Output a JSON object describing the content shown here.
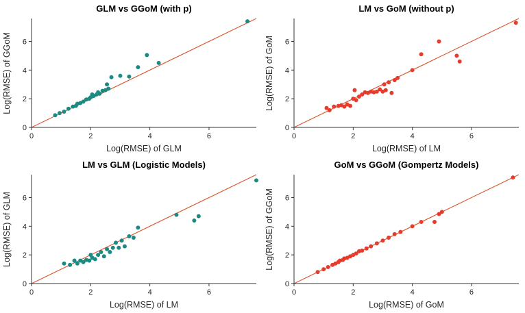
{
  "colors": {
    "teal_marker": "#1c8a82",
    "red_marker": "#e63c2d",
    "identity_line": "#d95a35",
    "axis": "#333333",
    "background": "#ffffff"
  },
  "chart_data": [
    {
      "type": "scatter",
      "title": "GLM vs GGoM (with p)",
      "xlabel": "Log(RMSE) of GLM",
      "ylabel": "Log(RMSE) of GGoM",
      "xlim": [
        0,
        7.6
      ],
      "ylim": [
        0,
        7.6
      ],
      "xticks": [
        0,
        2,
        4,
        6
      ],
      "yticks": [
        0,
        2,
        4,
        6
      ],
      "grid": false,
      "legend": "none",
      "identity_line": true,
      "marker_color": "#1c8a82",
      "points": [
        [
          0.8,
          0.85
        ],
        [
          0.95,
          1.0
        ],
        [
          1.1,
          1.1
        ],
        [
          1.25,
          1.3
        ],
        [
          1.4,
          1.45
        ],
        [
          1.5,
          1.5
        ],
        [
          1.55,
          1.65
        ],
        [
          1.65,
          1.7
        ],
        [
          1.75,
          1.8
        ],
        [
          1.85,
          1.95
        ],
        [
          1.95,
          2.0
        ],
        [
          2.0,
          2.1
        ],
        [
          2.05,
          2.3
        ],
        [
          2.1,
          2.2
        ],
        [
          2.2,
          2.3
        ],
        [
          2.25,
          2.45
        ],
        [
          2.3,
          2.35
        ],
        [
          2.4,
          2.55
        ],
        [
          2.5,
          2.6
        ],
        [
          2.55,
          3.0
        ],
        [
          2.6,
          2.7
        ],
        [
          2.7,
          3.5
        ],
        [
          3.0,
          3.6
        ],
        [
          3.3,
          3.55
        ],
        [
          3.6,
          4.2
        ],
        [
          3.9,
          5.05
        ],
        [
          4.3,
          4.5
        ],
        [
          7.3,
          7.4
        ]
      ]
    },
    {
      "type": "scatter",
      "title": "LM vs GoM (without p)",
      "xlabel": "Log(RMSE) of LM",
      "ylabel": "Log(RMSE) of GoM",
      "xlim": [
        0,
        7.6
      ],
      "ylim": [
        0,
        7.6
      ],
      "xticks": [
        0,
        2,
        4,
        6
      ],
      "yticks": [
        0,
        2,
        4,
        6
      ],
      "grid": false,
      "legend": "none",
      "identity_line": true,
      "marker_color": "#e63c2d",
      "points": [
        [
          1.1,
          1.35
        ],
        [
          1.2,
          1.2
        ],
        [
          1.35,
          1.45
        ],
        [
          1.5,
          1.5
        ],
        [
          1.6,
          1.55
        ],
        [
          1.7,
          1.45
        ],
        [
          1.8,
          1.6
        ],
        [
          1.9,
          1.5
        ],
        [
          2.0,
          2.0
        ],
        [
          2.05,
          2.6
        ],
        [
          2.1,
          1.9
        ],
        [
          2.2,
          2.15
        ],
        [
          2.3,
          2.3
        ],
        [
          2.4,
          2.45
        ],
        [
          2.5,
          2.4
        ],
        [
          2.6,
          2.5
        ],
        [
          2.7,
          2.45
        ],
        [
          2.8,
          2.5
        ],
        [
          2.9,
          2.65
        ],
        [
          3.0,
          2.5
        ],
        [
          3.05,
          3.0
        ],
        [
          3.1,
          2.6
        ],
        [
          3.2,
          3.15
        ],
        [
          3.3,
          2.4
        ],
        [
          3.4,
          3.3
        ],
        [
          3.5,
          3.45
        ],
        [
          4.0,
          4.0
        ],
        [
          4.3,
          5.1
        ],
        [
          4.9,
          6.0
        ],
        [
          5.5,
          5.0
        ],
        [
          5.6,
          4.6
        ],
        [
          7.5,
          7.3
        ]
      ]
    },
    {
      "type": "scatter",
      "title": "LM vs GLM (Logistic Models)",
      "xlabel": "Log(RMSE) of LM",
      "ylabel": "Log(RMSE) of GLM",
      "xlim": [
        0,
        7.6
      ],
      "ylim": [
        0,
        7.6
      ],
      "xticks": [
        0,
        2,
        4,
        6
      ],
      "yticks": [
        0,
        2,
        4,
        6
      ],
      "grid": false,
      "legend": "none",
      "identity_line": true,
      "marker_color": "#1c8a82",
      "points": [
        [
          1.1,
          1.4
        ],
        [
          1.3,
          1.3
        ],
        [
          1.45,
          1.6
        ],
        [
          1.55,
          1.4
        ],
        [
          1.65,
          1.6
        ],
        [
          1.75,
          1.5
        ],
        [
          1.85,
          1.65
        ],
        [
          1.95,
          1.6
        ],
        [
          2.0,
          2.0
        ],
        [
          2.05,
          1.8
        ],
        [
          2.15,
          1.7
        ],
        [
          2.25,
          2.0
        ],
        [
          2.35,
          2.2
        ],
        [
          2.45,
          1.9
        ],
        [
          2.55,
          2.4
        ],
        [
          2.65,
          2.2
        ],
        [
          2.75,
          2.5
        ],
        [
          2.85,
          2.85
        ],
        [
          2.95,
          2.5
        ],
        [
          3.05,
          3.0
        ],
        [
          3.15,
          2.6
        ],
        [
          3.3,
          3.3
        ],
        [
          3.45,
          3.2
        ],
        [
          3.6,
          3.9
        ],
        [
          4.9,
          4.8
        ],
        [
          5.5,
          4.4
        ],
        [
          5.65,
          4.7
        ],
        [
          7.6,
          7.2
        ]
      ]
    },
    {
      "type": "scatter",
      "title": "GoM vs GGoM (Gompertz Models)",
      "xlabel": "Log(RMSE) of GoM",
      "ylabel": "Log(RMSE) of GGoM",
      "xlim": [
        0,
        7.6
      ],
      "ylim": [
        0,
        7.6
      ],
      "xticks": [
        0,
        2,
        4,
        6
      ],
      "yticks": [
        0,
        2,
        4,
        6
      ],
      "grid": false,
      "legend": "none",
      "identity_line": true,
      "marker_color": "#e63c2d",
      "points": [
        [
          0.8,
          0.8
        ],
        [
          1.0,
          1.0
        ],
        [
          1.15,
          1.15
        ],
        [
          1.3,
          1.3
        ],
        [
          1.4,
          1.4
        ],
        [
          1.5,
          1.5
        ],
        [
          1.55,
          1.6
        ],
        [
          1.65,
          1.65
        ],
        [
          1.7,
          1.75
        ],
        [
          1.8,
          1.8
        ],
        [
          1.9,
          1.9
        ],
        [
          2.0,
          2.0
        ],
        [
          2.1,
          2.1
        ],
        [
          2.2,
          2.25
        ],
        [
          2.3,
          2.3
        ],
        [
          2.45,
          2.45
        ],
        [
          2.6,
          2.6
        ],
        [
          2.8,
          2.8
        ],
        [
          3.0,
          3.0
        ],
        [
          3.2,
          3.2
        ],
        [
          3.4,
          3.45
        ],
        [
          3.6,
          3.6
        ],
        [
          4.0,
          4.0
        ],
        [
          4.3,
          4.3
        ],
        [
          4.75,
          4.3
        ],
        [
          4.9,
          4.85
        ],
        [
          5.0,
          5.0
        ],
        [
          7.4,
          7.4
        ]
      ]
    }
  ]
}
